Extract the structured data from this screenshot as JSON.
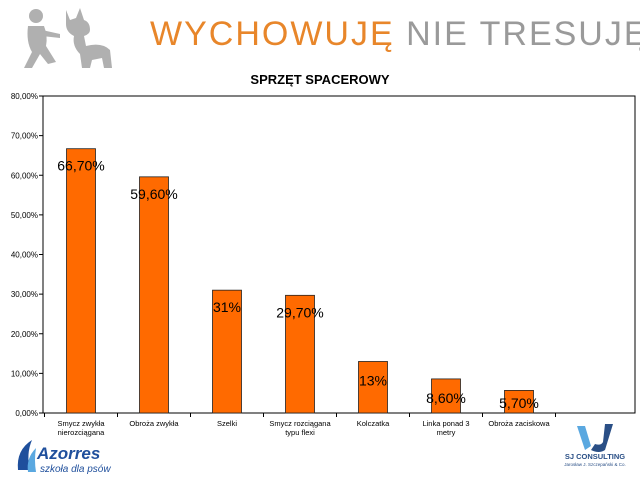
{
  "header": {
    "title_part1": "WYCHOWUJĘ",
    "title_part2": "NIE TRESUJĘ"
  },
  "chart_data": {
    "type": "bar",
    "title": "SPRZĘT SPACEROWY",
    "xlabel": "",
    "ylabel": "",
    "ylim": [
      0,
      0.8
    ],
    "y_ticks": [
      "0,00%",
      "10,00%",
      "20,00%",
      "30,00%",
      "40,00%",
      "50,00%",
      "60,00%",
      "70,00%",
      "80,00%"
    ],
    "categories": [
      [
        "Smycz zwykła",
        "nierozciągana"
      ],
      [
        "Obroża zwykła"
      ],
      [
        "Szelki"
      ],
      [
        "Smycz rozciągana",
        "typu flexi"
      ],
      [
        "Kolczatka"
      ],
      [
        "Linka ponad 3",
        "metry"
      ],
      [
        "Obroża zaciskowa"
      ]
    ],
    "values": [
      0.667,
      0.596,
      0.31,
      0.297,
      0.13,
      0.086,
      0.057
    ],
    "data_labels": [
      "66,70%",
      "59,60%",
      "31%",
      "29,70%",
      "13%",
      "8,60%",
      "5,70%"
    ],
    "bar_color": "#ff6a00",
    "grid": false,
    "legend": "none"
  },
  "footer": {
    "brand_name": "Azorres",
    "brand_tagline": "szkoła dla psów",
    "partner_name": "SJ CONSULTING",
    "partner_subtitle": "Jarosław J. Szczepański & Co."
  },
  "colors": {
    "accent_orange": "#e8862a",
    "title_gray": "#9a9a9a",
    "brand_blue": "#1f4f9c"
  }
}
